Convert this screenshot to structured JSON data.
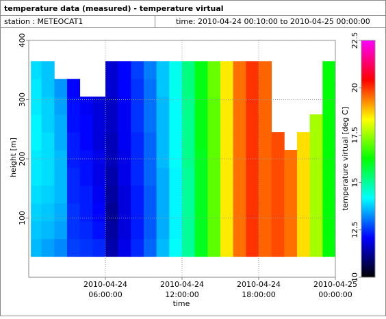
{
  "header": {
    "title": "temperature data (measured) - temperature virtual",
    "station": "station : METEOCAT1",
    "time": "time: 2010-04-24 00:10:00 to 2010-04-25 00:00:00"
  },
  "chart_data": {
    "type": "heatmap",
    "x_label": "time",
    "y_label": "height [m]",
    "z_label": "temperature virtual [deg C]",
    "x": [
      "2010-04-24 00:10:00",
      "2010-04-24 01:00:00",
      "2010-04-24 02:00:00",
      "2010-04-24 03:00:00",
      "2010-04-24 04:00:00",
      "2010-04-24 05:00:00",
      "2010-04-24 06:00:00",
      "2010-04-24 07:00:00",
      "2010-04-24 08:00:00",
      "2010-04-24 09:00:00",
      "2010-04-24 10:00:00",
      "2010-04-24 11:00:00",
      "2010-04-24 12:00:00",
      "2010-04-24 13:00:00",
      "2010-04-24 14:00:00",
      "2010-04-24 15:00:00",
      "2010-04-24 16:00:00",
      "2010-04-24 17:00:00",
      "2010-04-24 18:00:00",
      "2010-04-24 19:00:00",
      "2010-04-24 20:00:00",
      "2010-04-24 21:00:00",
      "2010-04-24 22:00:00",
      "2010-04-24 23:00:00",
      "2010-04-25 00:00:00"
    ],
    "y": [
      35,
      65,
      95,
      125,
      155,
      185,
      215,
      245,
      275,
      305,
      335,
      365
    ],
    "z": [
      [
        13.6,
        13.7,
        13.8,
        13.9,
        14,
        14,
        14.1,
        14.1,
        14,
        14,
        13.9
      ],
      [
        13.4,
        13.6,
        13.7,
        13.8,
        13.9,
        13.9,
        13.9,
        13.8,
        13.8,
        13.7,
        13.7
      ],
      [
        13.2,
        13.4,
        13.5,
        13.6,
        13.6,
        13.6,
        13.5,
        13.5,
        13.4,
        13.3,
        null
      ],
      [
        12.6,
        12.5,
        12.5,
        12.4,
        12.4,
        12.3,
        12.3,
        12.2,
        12.2,
        12.1,
        null
      ],
      [
        12.5,
        12.4,
        12.3,
        12.3,
        12.2,
        12.2,
        12.1,
        12.1,
        12,
        null,
        null
      ],
      [
        12.4,
        12.2,
        12.1,
        12,
        11.9,
        11.9,
        11.8,
        11.8,
        11.8,
        null,
        null
      ],
      [
        11.4,
        11.3,
        11.2,
        11.3,
        11.4,
        11.5,
        11.5,
        11.6,
        11.6,
        11.7,
        11.7
      ],
      [
        11.9,
        11.8,
        11.8,
        11.8,
        11.9,
        11.9,
        12,
        12,
        12,
        12.1,
        12.1
      ],
      [
        12.4,
        12.3,
        12.3,
        12.3,
        12.4,
        12.4,
        12.4,
        12.5,
        12.5,
        12.5,
        12.6
      ],
      [
        12.9,
        12.8,
        12.8,
        12.8,
        12.9,
        12.9,
        12.9,
        13,
        13,
        13,
        13.1
      ],
      [
        13.6,
        13.5,
        13.5,
        13.5,
        13.5,
        13.6,
        13.6,
        13.6,
        13.6,
        13.7,
        13.7
      ],
      [
        14.2,
        14.1,
        14.1,
        14.1,
        14.1,
        14.2,
        14.2,
        14.2,
        14.2,
        14.3,
        14.3
      ],
      [
        15,
        15,
        15,
        15,
        15,
        15.1,
        15.1,
        15.1,
        15.1,
        15.2,
        15.2
      ],
      [
        16,
        16,
        16,
        16,
        16,
        16,
        16.1,
        16.1,
        16.1,
        16.1,
        16.1
      ],
      [
        17,
        17,
        17,
        17,
        17,
        17,
        17,
        17,
        17,
        17.1,
        17.1
      ],
      [
        18.5,
        18.5,
        18.5,
        18.5,
        18.5,
        18.5,
        18.5,
        18.5,
        18.5,
        18.5,
        18.5
      ],
      [
        19.5,
        19.5,
        19.5,
        19.5,
        19.5,
        19.5,
        19.5,
        19.5,
        19.5,
        19.5,
        19.5
      ],
      [
        20,
        20,
        20,
        20,
        20,
        20,
        20,
        20,
        20,
        20,
        20
      ],
      [
        19.6,
        19.6,
        19.6,
        19.6,
        19.6,
        19.6,
        19.6,
        19.6,
        19.6,
        19.6,
        19.6
      ],
      [
        19.8,
        19.8,
        19.8,
        19.8,
        19.8,
        19.8,
        19.8,
        null,
        null,
        null,
        null
      ],
      [
        19.5,
        19.5,
        19.5,
        19.5,
        19.5,
        19.5,
        null,
        null,
        null,
        null,
        null
      ],
      [
        18.6,
        18.6,
        18.6,
        18.6,
        18.6,
        18.6,
        18.6,
        null,
        null,
        null,
        null
      ],
      [
        17.6,
        17.6,
        17.6,
        17.6,
        17.6,
        17.6,
        17.6,
        17.6,
        null,
        null,
        null
      ],
      [
        16.2,
        16.2,
        16.2,
        16.2,
        16.2,
        16.2,
        16.2,
        16.2,
        16.2,
        16.2,
        16.2
      ]
    ],
    "xlim": [
      "2010-04-24 00:00:00",
      "2010-04-25 00:00:00"
    ],
    "xticks": [
      {
        "value": "2010-04-24 06:00:00",
        "label": "2010-04-24\n06:00:00"
      },
      {
        "value": "2010-04-24 12:00:00",
        "label": "2010-04-24\n12:00:00"
      },
      {
        "value": "2010-04-24 18:00:00",
        "label": "2010-04-24\n18:00:00"
      },
      {
        "value": "2010-04-25 00:00:00",
        "label": "2010-04-25\n00:00:00"
      }
    ],
    "ylim": [
      0,
      400
    ],
    "yticks": [
      100,
      200,
      300,
      400
    ],
    "zlim": [
      10,
      22.5
    ],
    "zticks": [
      10,
      12.5,
      15,
      17.5,
      20,
      22.5
    ],
    "colormap": [
      "#000000",
      "#0000ff",
      "#00ffff",
      "#00ff00",
      "#ffff00",
      "#ff0000",
      "#ff00ff"
    ],
    "grid": true
  }
}
